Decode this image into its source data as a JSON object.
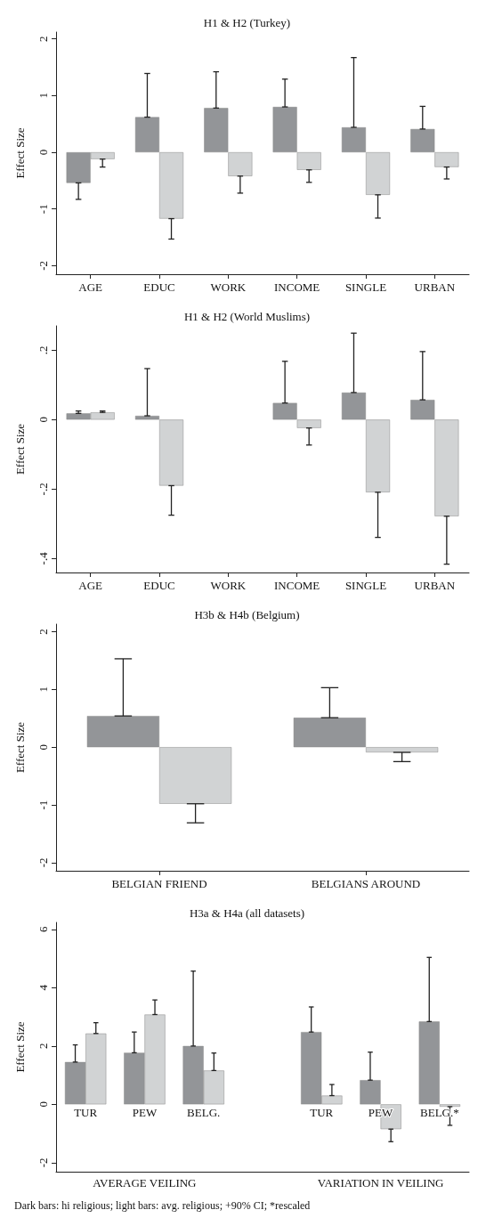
{
  "chart_data": [
    {
      "type": "bar",
      "title": "H1 & H2 (Turkey)",
      "ylabel": "Effect Size",
      "categories": [
        "AGE",
        "EDUC",
        "WORK",
        "INCOME",
        "SINGLE",
        "URBAN"
      ],
      "series": [
        {
          "color": "#939598",
          "values": [
            -0.54,
            0.62,
            0.78,
            0.8,
            0.44,
            0.41
          ],
          "errors": [
            [
              -0.83,
              -0.54
            ],
            [
              0.62,
              1.39
            ],
            [
              0.78,
              1.42
            ],
            [
              0.8,
              1.29
            ],
            [
              0.44,
              1.67
            ],
            [
              0.41,
              0.81
            ]
          ]
        },
        {
          "color": "#d1d3d4",
          "values": [
            -0.12,
            -1.17,
            -0.42,
            -0.31,
            -0.75,
            -0.26
          ],
          "errors": [
            [
              -0.26,
              -0.12
            ],
            [
              -1.53,
              -1.17
            ],
            [
              -0.72,
              -0.42
            ],
            [
              -0.53,
              -0.31
            ],
            [
              -1.16,
              -0.75
            ],
            [
              -0.47,
              -0.26
            ]
          ]
        }
      ],
      "ylim": [
        -2.15,
        2.12
      ],
      "yticks": [
        -2,
        -1,
        0,
        1,
        2
      ],
      "grid": false
    },
    {
      "type": "bar",
      "title": "H1 & H2 (World Muslims)",
      "ylabel": "Effect Size",
      "categories": [
        "AGE",
        "EDUC",
        "WORK",
        "INCOME",
        "SINGLE",
        "URBAN"
      ],
      "series": [
        {
          "color": "#939598",
          "values": [
            0.018,
            0.011,
            null,
            0.048,
            0.078,
            0.057
          ],
          "errors": [
            [
              0.018,
              0.025
            ],
            [
              0.011,
              0.147
            ],
            null,
            [
              0.048,
              0.168
            ],
            [
              0.078,
              0.249
            ],
            [
              0.057,
              0.196
            ]
          ]
        },
        {
          "color": "#d1d3d4",
          "values": [
            0.021,
            -0.19,
            null,
            -0.024,
            -0.209,
            -0.278
          ],
          "errors": [
            [
              0.021,
              0.025
            ],
            [
              -0.275,
              -0.19
            ],
            null,
            [
              -0.073,
              -0.024
            ],
            [
              -0.339,
              -0.209
            ],
            [
              -0.416,
              -0.278
            ]
          ]
        }
      ],
      "ylim": [
        -0.44,
        0.27
      ],
      "yticks": [
        {
          "value": -0.4,
          "label": "-.4"
        },
        {
          "value": -0.2,
          "label": "-.2"
        },
        0,
        {
          "value": 0.2,
          "label": ".2"
        }
      ],
      "grid": false
    },
    {
      "type": "bar",
      "title": "H3b & H4b (Belgium)",
      "ylabel": "Effect Size",
      "categories": [
        "BELGIAN FRIEND",
        "BELGIANS AROUND"
      ],
      "series": [
        {
          "color": "#939598",
          "values": [
            0.54,
            0.51
          ],
          "errors": [
            [
              0.54,
              1.53
            ],
            [
              0.51,
              1.03
            ]
          ]
        },
        {
          "color": "#d1d3d4",
          "values": [
            -0.98,
            -0.09
          ],
          "errors": [
            [
              -1.31,
              -0.98
            ],
            [
              -0.25,
              -0.09
            ]
          ]
        }
      ],
      "ylim": [
        -2.14,
        2.13
      ],
      "yticks": [
        -2,
        -1,
        0,
        1,
        2
      ],
      "grid": false
    },
    {
      "type": "bar",
      "title": "H3a & H4a (all datasets)",
      "ylabel": "Effect Size",
      "categories": [
        "TUR",
        "PEW",
        "BELG.",
        null,
        "TUR",
        "PEW",
        "BELG.*"
      ],
      "series": [
        {
          "color": "#939598",
          "values": [
            1.45,
            1.77,
            2.0,
            null,
            2.48,
            0.83,
            2.84
          ],
          "errors": [
            [
              1.45,
              2.04
            ],
            [
              1.77,
              2.48
            ],
            [
              2.0,
              4.57
            ],
            null,
            [
              2.48,
              3.34
            ],
            [
              0.83,
              1.79
            ],
            [
              2.84,
              5.04
            ]
          ]
        },
        {
          "color": "#d1d3d4",
          "values": [
            2.43,
            3.08,
            1.16,
            null,
            0.3,
            -0.85,
            -0.08
          ],
          "errors": [
            [
              2.43,
              2.8
            ],
            [
              3.08,
              3.58
            ],
            [
              1.16,
              1.76
            ],
            null,
            [
              0.3,
              0.68
            ],
            [
              -1.28,
              -0.85
            ],
            [
              -0.72,
              -0.08
            ]
          ]
        }
      ],
      "ylim": [
        -2.31,
        6.24
      ],
      "yticks": [
        -2,
        0,
        2,
        4,
        6
      ],
      "grid": false,
      "annotations": [
        "AVERAGE VEILING",
        "VARIATION IN VEILING",
        "Dark bars: hi religious; light bars: avg. religious; +90% CI; *rescaled"
      ]
    }
  ]
}
